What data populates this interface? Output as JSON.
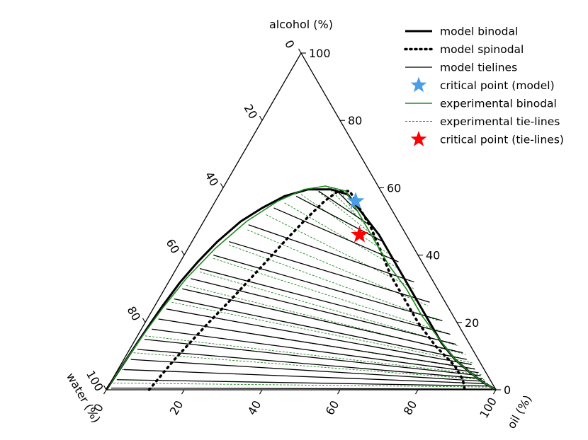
{
  "chart_data": {
    "type": "ternary",
    "axes": {
      "alcohol": {
        "label": "alcohol (%)",
        "ticks": [
          "0",
          "20",
          "40",
          "60",
          "80",
          "100"
        ],
        "range": [
          0,
          100
        ]
      },
      "water": {
        "label": "water (%)",
        "ticks": [
          "0",
          "20",
          "40",
          "60",
          "80",
          "100"
        ],
        "range": [
          0,
          100
        ]
      },
      "oil": {
        "label": "oil (%)",
        "ticks": [
          "0",
          "20",
          "40",
          "60",
          "80",
          "100"
        ],
        "range": [
          0,
          100
        ]
      }
    },
    "legend": {
      "placement": "top-right",
      "entries": [
        {
          "label": "model binodal",
          "style": "thick-solid",
          "color": "#000000"
        },
        {
          "label": "model spinodal",
          "style": "dotted",
          "color": "#000000"
        },
        {
          "label": "model tielines",
          "style": "thin-solid",
          "color": "#000000"
        },
        {
          "label": "critical point (model)",
          "style": "star",
          "color": "#4a9ee8"
        },
        {
          "label": "experimental binodal",
          "style": "solid",
          "color": "#228b22"
        },
        {
          "label": "experimental tie-lines",
          "style": "dashed",
          "color": "#228b22"
        },
        {
          "label": "critical point (tie-lines)",
          "style": "star",
          "color": "#ff0000"
        }
      ]
    },
    "series": [
      {
        "name": "model binodal",
        "points_oil_alcohol": [
          [
            0,
            0
          ],
          [
            0.5,
            7
          ],
          [
            1,
            14
          ],
          [
            1.5,
            20
          ],
          [
            2,
            25
          ],
          [
            3,
            32
          ],
          [
            4.5,
            38
          ],
          [
            6.5,
            44
          ],
          [
            9.5,
            50
          ],
          [
            13,
            54
          ],
          [
            17,
            57.5
          ],
          [
            22,
            59.5
          ],
          [
            28,
            59.5
          ],
          [
            33,
            58
          ],
          [
            40,
            52
          ],
          [
            47,
            46
          ],
          [
            53,
            40
          ],
          [
            60,
            33
          ],
          [
            66,
            27
          ],
          [
            73,
            20
          ],
          [
            79,
            14
          ],
          [
            85,
            9
          ],
          [
            91,
            5
          ],
          [
            96,
            2
          ],
          [
            99,
            0.5
          ],
          [
            100,
            0
          ]
        ]
      },
      {
        "name": "model spinodal",
        "points_oil_alcohol": [
          [
            11,
            0
          ],
          [
            13,
            9
          ],
          [
            16,
            19
          ],
          [
            19,
            28
          ],
          [
            22,
            38
          ],
          [
            24,
            45
          ],
          [
            26,
            51
          ],
          [
            28,
            56
          ],
          [
            30,
            59
          ],
          [
            33,
            59
          ],
          [
            38,
            54
          ],
          [
            44,
            48
          ],
          [
            50,
            41
          ],
          [
            56,
            34
          ],
          [
            63,
            27
          ],
          [
            70,
            20
          ],
          [
            78,
            13
          ],
          [
            86,
            7
          ],
          [
            90,
            3
          ],
          [
            92,
            0
          ]
        ]
      },
      {
        "name": "experimental binodal",
        "points_oil_alcohol": [
          [
            0,
            0
          ],
          [
            0.5,
            7
          ],
          [
            1.3,
            16
          ],
          [
            2.3,
            24
          ],
          [
            4,
            33
          ],
          [
            7,
            42
          ],
          [
            11,
            50
          ],
          [
            16,
            56
          ],
          [
            21,
            59.5
          ],
          [
            26,
            60.5
          ],
          [
            32,
            59
          ],
          [
            38,
            53
          ],
          [
            46,
            45
          ],
          [
            54,
            37
          ],
          [
            62,
            30
          ],
          [
            70,
            22
          ],
          [
            78,
            15
          ],
          [
            85,
            9
          ],
          [
            91,
            5
          ],
          [
            96,
            2
          ],
          [
            100,
            0
          ]
        ]
      }
    ],
    "model_tielines_oil_alcohol": [
      [
        [
          1,
          0.5
        ],
        [
          99,
          0.2
        ]
      ],
      [
        [
          1.2,
          3
        ],
        [
          98,
          1.1
        ]
      ],
      [
        [
          1.5,
          6
        ],
        [
          97,
          1.8
        ]
      ],
      [
        [
          1.8,
          9
        ],
        [
          96,
          2.5
        ]
      ],
      [
        [
          2,
          12
        ],
        [
          95,
          3.3
        ]
      ],
      [
        [
          2.3,
          15
        ],
        [
          94,
          4.2
        ]
      ],
      [
        [
          2.7,
          18
        ],
        [
          93,
          5.1
        ]
      ],
      [
        [
          3,
          21
        ],
        [
          91.5,
          6.2
        ]
      ],
      [
        [
          3.4,
          24
        ],
        [
          90,
          7.5
        ]
      ],
      [
        [
          3.9,
          27
        ],
        [
          88,
          9
        ]
      ],
      [
        [
          4.5,
          30
        ],
        [
          86,
          11
        ]
      ],
      [
        [
          5.2,
          33
        ],
        [
          83,
          13.5
        ]
      ],
      [
        [
          6,
          36
        ],
        [
          80,
          16.5
        ]
      ],
      [
        [
          7.5,
          40
        ],
        [
          76,
          20.5
        ]
      ],
      [
        [
          9.5,
          44
        ],
        [
          70,
          26
        ]
      ],
      [
        [
          12,
          49
        ],
        [
          63,
          32
        ]
      ],
      [
        [
          16,
          54
        ],
        [
          56,
          38
        ]
      ],
      [
        [
          20,
          57.5
        ],
        [
          49,
          44
        ]
      ],
      [
        [
          25,
          59
        ],
        [
          43,
          49
        ]
      ],
      [
        [
          29,
          59.5
        ],
        [
          38,
          53
        ]
      ]
    ],
    "experimental_tielines_oil_alcohol": [
      [
        [
          0.8,
          2
        ],
        [
          98.5,
          0.8
        ]
      ],
      [
        [
          1,
          6
        ],
        [
          97,
          1.8
        ]
      ],
      [
        [
          1.5,
          11
        ],
        [
          95.5,
          3
        ]
      ],
      [
        [
          2,
          16
        ],
        [
          94,
          4.5
        ]
      ],
      [
        [
          2.8,
          21
        ],
        [
          92,
          6
        ]
      ],
      [
        [
          3.8,
          26
        ],
        [
          90,
          8
        ]
      ],
      [
        [
          5,
          31
        ],
        [
          87,
          10.5
        ]
      ],
      [
        [
          6.5,
          35
        ],
        [
          84,
          13
        ]
      ],
      [
        [
          8,
          39
        ],
        [
          80,
          16.5
        ]
      ],
      [
        [
          10,
          43
        ],
        [
          75,
          20.5
        ]
      ],
      [
        [
          12.5,
          47.5
        ],
        [
          70,
          25
        ]
      ],
      [
        [
          15,
          52
        ],
        [
          64,
          30
        ]
      ],
      [
        [
          18,
          55.5
        ],
        [
          58,
          35.5
        ]
      ],
      [
        [
          21,
          58
        ],
        [
          52,
          40.5
        ]
      ],
      [
        [
          24,
          59.5
        ],
        [
          47,
          45
        ]
      ],
      [
        [
          27,
          60
        ],
        [
          42,
          49
        ]
      ],
      [
        [
          30,
          59.5
        ],
        [
          38,
          52
        ]
      ]
    ],
    "critical_points": [
      {
        "name": "critical point (model)",
        "oil": 36,
        "alcohol": 56
      },
      {
        "name": "critical point (tie-lines)",
        "oil": 42,
        "alcohol": 46
      }
    ]
  }
}
